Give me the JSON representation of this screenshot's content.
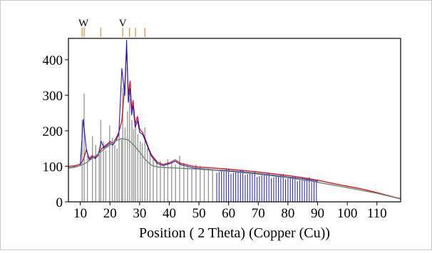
{
  "chart_data": {
    "type": "line",
    "xlabel": "Position ( 2 Theta) (Copper (Cu))",
    "ylabel": "",
    "xlim": [
      6,
      118
    ],
    "ylim": [
      0,
      460
    ],
    "xticks": [
      10,
      20,
      30,
      40,
      50,
      60,
      70,
      80,
      90,
      100,
      110
    ],
    "yticks": [
      0,
      100,
      200,
      300,
      400
    ],
    "grid": false,
    "legend": "none",
    "phase_markers": [
      {
        "label": "W",
        "positions": [
          10.6,
          11.3
        ]
      },
      {
        "label": "V",
        "positions": [
          24.3
        ]
      }
    ],
    "marker_ticks": [
      10.6,
      11.3,
      16.9,
      24.3,
      26.6,
      28.6,
      31.8
    ],
    "series": [
      {
        "color": "#e00000",
        "x": [
          6,
          8,
          10,
          11,
          12,
          13,
          14,
          15,
          16,
          17,
          18,
          19,
          20,
          21,
          22,
          23,
          24,
          25,
          25.6,
          26.2,
          26.8,
          27.3,
          27.8,
          28.5,
          29.3,
          30,
          31,
          32,
          33,
          34,
          36,
          38,
          40,
          42,
          44,
          46,
          48,
          50,
          55,
          60,
          65,
          70,
          75,
          80,
          85,
          90,
          95,
          100,
          105,
          110,
          115,
          118
        ],
        "y": [
          100,
          101,
          106,
          118,
          146,
          122,
          130,
          125,
          135,
          148,
          155,
          162,
          170,
          165,
          178,
          196,
          228,
          330,
          440,
          300,
          340,
          260,
          285,
          220,
          240,
          205,
          195,
          175,
          152,
          132,
          112,
          105,
          110,
          118,
          108,
          104,
          100,
          98,
          95,
          92,
          88,
          84,
          79,
          74,
          68,
          61,
          52,
          44,
          36,
          26,
          15,
          9
        ]
      },
      {
        "color": "#1c1ccc",
        "x": [
          6,
          8,
          10,
          11,
          12,
          13,
          14,
          15,
          16,
          17,
          18,
          19,
          20,
          21,
          22,
          23,
          24,
          25,
          25.6,
          26.2,
          26.8,
          27.3,
          27.8,
          28.5,
          29.3,
          30,
          31,
          32,
          33,
          34,
          36,
          38,
          40,
          42,
          44,
          46,
          48,
          50,
          55,
          60,
          65,
          70,
          75,
          80,
          85,
          90
        ],
        "y": [
          96,
          98,
          102,
          232,
          150,
          118,
          126,
          122,
          130,
          170,
          152,
          158,
          165,
          160,
          172,
          190,
          375,
          300,
          455,
          280,
          320,
          245,
          270,
          210,
          228,
          196,
          190,
          170,
          148,
          128,
          108,
          102,
          107,
          114,
          104,
          100,
          96,
          94,
          90,
          88,
          84,
          80,
          75,
          70,
          65,
          58
        ]
      },
      {
        "color": "#6e8a6e",
        "x": [
          6,
          8,
          10,
          12,
          14,
          16,
          18,
          20,
          22,
          24,
          26,
          27,
          28,
          30,
          32,
          34,
          36,
          40,
          45,
          50,
          60,
          70,
          80,
          90,
          100,
          110,
          118
        ],
        "y": [
          95,
          97,
          102,
          110,
          122,
          135,
          148,
          160,
          172,
          178,
          175,
          168,
          160,
          140,
          118,
          103,
          98,
          96,
          94,
          92,
          86,
          78,
          68,
          55,
          40,
          24,
          8
        ]
      }
    ],
    "reference_lines": {
      "color": "#9a9a9a",
      "x": [
        10.6,
        11.3,
        12.4,
        14.1,
        15.2,
        16.4,
        16.9,
        17.8,
        18.6,
        19.9,
        20.8,
        21.6,
        22.4,
        23.1,
        23.9,
        24.3,
        25.1,
        25.9,
        26.6,
        27.4,
        28.0,
        28.6,
        29.4,
        30.2,
        30.9,
        31.8,
        32.6,
        33.5,
        34.6,
        35.8,
        37.0,
        38.3,
        39.5,
        40.8,
        42.1,
        43.5,
        44.9,
        46.2,
        47.6,
        49.0,
        50.4,
        51.8,
        53.2,
        54.6
      ],
      "y": [
        230,
        305,
        130,
        185,
        160,
        135,
        230,
        170,
        145,
        215,
        180,
        160,
        150,
        190,
        175,
        320,
        210,
        255,
        290,
        230,
        205,
        225,
        190,
        170,
        165,
        210,
        150,
        140,
        120,
        110,
        115,
        100,
        120,
        110,
        105,
        130,
        110,
        100,
        95,
        105,
        100,
        90,
        95,
        88
      ]
    },
    "blue_sticks": {
      "color": "#1c1ccc",
      "x_start": 56,
      "x_end": 90,
      "step": 0.8,
      "baseline_y": [
        90,
        60
      ]
    }
  }
}
